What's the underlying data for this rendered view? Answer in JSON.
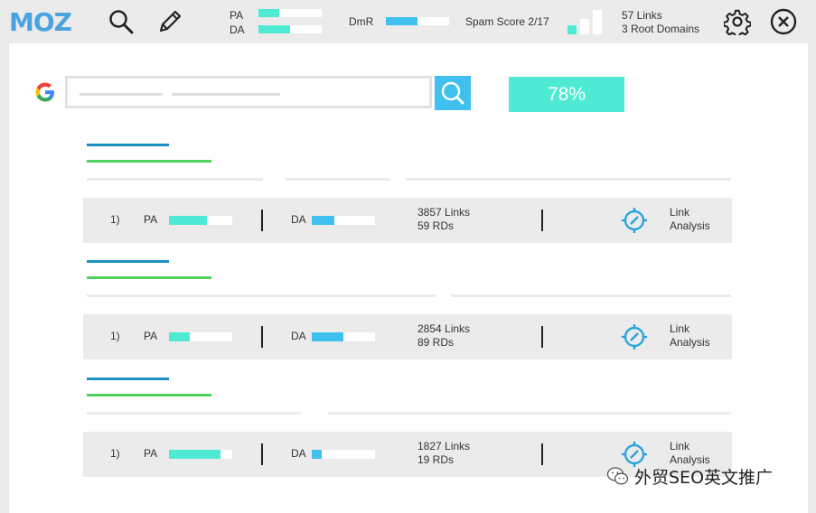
{
  "header": {
    "logo": "MOZ",
    "pa_label": "PA",
    "da_label": "DA",
    "pa_fraction": 0.33,
    "da_fraction": 0.5,
    "dmr_label": "DmR",
    "dmr_fraction": 0.5,
    "spam_score": "Spam Score 2/17",
    "links": "57 Links",
    "root_domains": "3 Root Domains"
  },
  "search": {
    "percent": "78%"
  },
  "results": [
    {
      "rank": "1)",
      "pa_label": "PA",
      "pa_fraction": 0.6,
      "da_label": "DA",
      "da_fraction": 0.35,
      "links": "3857 Links",
      "rds": "59 RDs",
      "action_line1": "Link",
      "action_line2": "Analysis"
    },
    {
      "rank": "1)",
      "pa_label": "PA",
      "pa_fraction": 0.33,
      "da_label": "DA",
      "da_fraction": 0.5,
      "links": "2854 Links",
      "rds": "89 RDs",
      "action_line1": "Link",
      "action_line2": "Analysis"
    },
    {
      "rank": "1)",
      "pa_label": "PA",
      "pa_fraction": 0.82,
      "da_label": "DA",
      "da_fraction": 0.15,
      "links": "1827 Links",
      "rds": "19 RDs",
      "action_line1": "Link",
      "action_line2": "Analysis"
    }
  ],
  "watermark": "外贸SEO英文推广",
  "colors": {
    "teal": "#4eead3",
    "blue": "#3fc0ef",
    "dark_blue": "#1c8fc3",
    "green": "#4fd35e"
  }
}
